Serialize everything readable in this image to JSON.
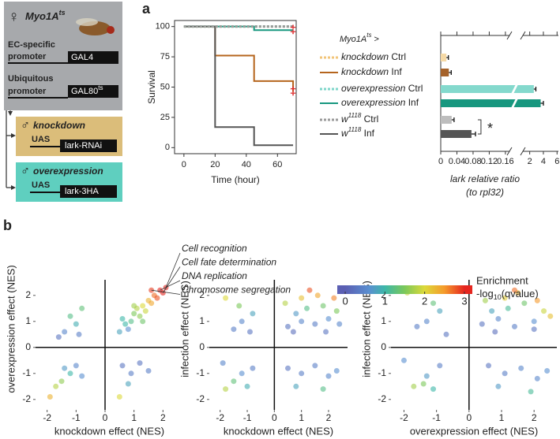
{
  "panels": [
    "a",
    "b"
  ],
  "diagram": {
    "female": {
      "symbol": "♀",
      "name": "Myo1A",
      "sup": "ts"
    },
    "drivers": [
      {
        "promoter": [
          "EC-specific",
          "promoter"
        ],
        "gene": "GAL4"
      },
      {
        "promoter": [
          "Ubiquitous",
          "promoter"
        ],
        "gene": "GAL80",
        "sup": "ts"
      }
    ],
    "males": [
      {
        "symbol": "♂",
        "name": "knockdown",
        "uas": "UAS",
        "construct": "lark-RNAi"
      },
      {
        "symbol": "♂",
        "name": "overexpression",
        "uas": "UAS",
        "construct": "lark-3HA"
      }
    ]
  },
  "colorbar": {
    "title": "Enrichment",
    "label": {
      "text": "-log",
      "sub": "10",
      "suffix": "(qvalue)"
    },
    "clim": [
      -0.2,
      3.2
    ],
    "ticks": [
      0,
      1,
      2,
      3
    ],
    "colormap": [
      {
        "value": 0,
        "color": "#5b5fb3"
      },
      {
        "value": 0.6,
        "color": "#5a8fd0"
      },
      {
        "value": 1,
        "color": "#3db7a8"
      },
      {
        "value": 1.5,
        "color": "#7cc85a"
      },
      {
        "value": 2,
        "color": "#dcd93a"
      },
      {
        "value": 2.5,
        "color": "#f59a2c"
      },
      {
        "value": 3,
        "color": "#e5261f"
      }
    ]
  },
  "chart_data": [
    {
      "type": "line",
      "xlabel": "Time (hour)",
      "ylabel": "Survival",
      "xlim": [
        -6,
        72
      ],
      "ylim": [
        -5,
        105
      ],
      "xticks": [
        0,
        20,
        40,
        60
      ],
      "yticks": [
        0,
        25,
        50,
        75,
        100
      ],
      "legend_title": {
        "text": "Myo1A",
        "sup": "ts",
        "suffix": " >"
      },
      "series": [
        {
          "name": "knockdown Ctrl",
          "color": "#f2c57a",
          "dashed": true,
          "x": [
            0,
            70
          ],
          "values": [
            100,
            100
          ]
        },
        {
          "name": "knockdown Inf",
          "color": "#b5651d",
          "dashed": false,
          "x": [
            0,
            20,
            20,
            45,
            45,
            70,
            70
          ],
          "values": [
            100,
            100,
            76,
            76,
            55,
            55,
            46
          ]
        },
        {
          "name": "overexpression Ctrl",
          "color": "#7fd6ca",
          "dashed": true,
          "x": [
            0,
            70
          ],
          "values": [
            100,
            100
          ]
        },
        {
          "name": "overexpression Inf",
          "color": "#17977f",
          "dashed": false,
          "x": [
            0,
            45,
            45,
            70
          ],
          "values": [
            100,
            100,
            97,
            97
          ]
        },
        {
          "name": "w1118 Ctrl",
          "color": "#9a9a9a",
          "dashed": true,
          "x": [
            0,
            70
          ],
          "values": [
            100,
            100
          ]
        },
        {
          "name": "w1118 Inf",
          "color": "#555555",
          "dashed": false,
          "x": [
            0,
            20,
            20,
            45,
            45,
            70
          ],
          "values": [
            100,
            100,
            17,
            17,
            2,
            2
          ]
        }
      ],
      "annotations": [
        {
          "text": "‡",
          "x": 70,
          "y": 97
        },
        {
          "text": "‡",
          "x": 70,
          "y": 46
        }
      ]
    },
    {
      "type": "hbar",
      "xlabel": "lark relative ratio",
      "xlabel2": "(to rpl32)",
      "xlim": [
        0,
        6.2
      ],
      "xbreak": [
        0.17,
        1
      ],
      "xticks": [
        0,
        0.04,
        0.08,
        0.12,
        0.16,
        2,
        4,
        6
      ],
      "categories": [
        null,
        null,
        null,
        null,
        null,
        null
      ],
      "values": [
        0.014,
        0.02,
        2.6,
        3.6,
        0.027,
        0.076
      ],
      "errors": [
        0.005,
        0.006,
        0.3,
        0.4,
        0.006,
        0.01
      ],
      "colors": [
        "#f5d9a6",
        "#a5622a",
        "#84d9cd",
        "#17977f",
        "#bdbdbd",
        "#555555"
      ],
      "annotation": "*"
    },
    {
      "type": "scatter",
      "xlabel": "knockdown effect (NES)",
      "ylabel": "overexpression effect (NES)",
      "xlim": [
        -2.4,
        2.7
      ],
      "ylim": [
        -2.4,
        2.6
      ],
      "xticks": [
        -2,
        -1,
        0,
        1,
        2
      ],
      "yticks": [
        -2,
        -1,
        0,
        1,
        2
      ],
      "annotations": [
        "Cell recognition",
        "Cell fate determination",
        "DNA replication",
        "Chromosome segregation"
      ],
      "x": [
        0.5,
        0.7,
        0.9,
        1.0,
        1.2,
        1.1,
        1.3,
        1.4,
        1.5,
        1.6,
        1.7,
        1.8,
        1.9,
        2.0,
        1.6,
        0.8,
        1.3,
        0.6,
        1.0,
        2.1,
        -1.2,
        -1.0,
        -0.8,
        -1.4,
        -0.9,
        -1.6,
        -1.5,
        -1.2,
        -1.0,
        -1.7,
        -0.8,
        -1.4,
        -1.9,
        0.6,
        0.9,
        1.2,
        0.8,
        1.5,
        0.5
      ],
      "values": [
        0.6,
        0.9,
        1.0,
        1.3,
        1.2,
        1.5,
        1.6,
        1.4,
        1.8,
        1.7,
        2.0,
        1.9,
        2.2,
        2.1,
        2.2,
        0.7,
        1.0,
        1.1,
        1.6,
        2.3,
        1.2,
        0.9,
        1.5,
        0.6,
        0.5,
        0.4,
        -1.3,
        -1.0,
        -0.7,
        -1.5,
        -1.1,
        -0.8,
        -1.9,
        -0.7,
        -1.0,
        -0.6,
        -1.4,
        -0.9,
        -1.9
      ],
      "color_values": [
        0.8,
        1.0,
        1.2,
        1.5,
        1.6,
        1.8,
        2.0,
        1.9,
        2.3,
        2.4,
        2.7,
        2.8,
        3.0,
        3.0,
        2.9,
        0.6,
        1.4,
        1.0,
        1.7,
        3.0,
        1.2,
        0.9,
        1.3,
        0.5,
        0.4,
        0.3,
        1.6,
        1.0,
        0.5,
        1.8,
        0.6,
        0.7,
        2.3,
        0.3,
        0.4,
        0.3,
        0.8,
        0.4,
        2.0
      ]
    },
    {
      "type": "scatter",
      "xlabel": "knockdown effect (NES)",
      "ylabel": "infection effect (NES)",
      "xlim": [
        -2.4,
        2.7
      ],
      "ylim": [
        -2.4,
        2.6
      ],
      "xticks": [
        -2,
        -1,
        0,
        1,
        2
      ],
      "yticks": [
        -2,
        -1,
        0,
        1,
        2
      ],
      "x": [
        0.5,
        1.0,
        1.5,
        2.0,
        0.8,
        1.2,
        1.8,
        2.3,
        0.4,
        1.0,
        1.6,
        2.2,
        1.3,
        0.7,
        1.9,
        2.4,
        -1.8,
        -1.2,
        -0.8,
        -1.5,
        -0.9,
        -1.3,
        -1.8,
        -1.2,
        -0.8,
        -1.5,
        -1.0,
        -1.9,
        0.5,
        1.0,
        1.5,
        2.0,
        0.8,
        1.8,
        2.3
      ],
      "values": [
        0.8,
        1.0,
        0.9,
        1.1,
        1.3,
        1.5,
        1.6,
        1.4,
        1.7,
        1.9,
        2.0,
        1.9,
        2.2,
        0.6,
        0.6,
        0.9,
        1.9,
        1.0,
        1.3,
        0.7,
        0.6,
        1.6,
        -1.6,
        -1.0,
        -0.8,
        -1.3,
        -1.5,
        -0.6,
        -0.8,
        -1.0,
        -0.7,
        -1.1,
        -1.5,
        -1.6,
        -0.9
      ],
      "color_values": [
        0.3,
        0.5,
        0.4,
        0.6,
        0.7,
        1.2,
        1.4,
        1.5,
        1.8,
        2.2,
        2.4,
        2.6,
        2.8,
        0.2,
        0.3,
        0.5,
        2.0,
        0.5,
        0.8,
        0.4,
        0.3,
        1.5,
        1.8,
        0.6,
        0.4,
        1.3,
        0.9,
        0.5,
        0.3,
        0.4,
        0.4,
        0.5,
        0.8,
        1.2,
        0.6
      ]
    },
    {
      "type": "scatter",
      "xlabel": "overexpression effect (NES)",
      "ylabel": "infection effect (NES)",
      "xlim": [
        -2.4,
        2.7
      ],
      "ylim": [
        -2.4,
        2.6
      ],
      "xticks": [
        -2,
        -1,
        0,
        1,
        2
      ],
      "yticks": [
        -2,
        -1,
        0,
        1,
        2
      ],
      "x": [
        0.4,
        0.9,
        1.4,
        2.0,
        0.7,
        1.2,
        1.7,
        2.3,
        0.5,
        1.1,
        1.5,
        2.1,
        1.4,
        0.8,
        2.0,
        2.5,
        -1.9,
        -1.3,
        -0.9,
        -1.6,
        -0.7,
        -1.1,
        -1.7,
        -1.3,
        -0.9,
        -1.4,
        -1.1,
        -2.0,
        0.6,
        1.1,
        1.6,
        2.1,
        0.9,
        1.9,
        2.4
      ],
      "values": [
        0.9,
        1.1,
        0.8,
        1.0,
        1.4,
        1.5,
        1.7,
        1.4,
        1.8,
        1.9,
        2.1,
        1.8,
        2.2,
        0.6,
        0.7,
        1.2,
        2.1,
        1.0,
        1.4,
        0.8,
        0.5,
        1.7,
        -1.5,
        -1.1,
        -0.7,
        -1.4,
        -1.6,
        -0.5,
        -0.7,
        -1.0,
        -0.8,
        -1.2,
        -1.5,
        -1.7,
        -0.9
      ],
      "color_values": [
        0.3,
        0.5,
        0.4,
        0.6,
        0.8,
        1.1,
        1.4,
        1.9,
        1.7,
        2.1,
        2.3,
        2.5,
        2.7,
        0.2,
        0.3,
        2.2,
        1.9,
        0.5,
        0.8,
        0.4,
        0.3,
        1.3,
        1.7,
        0.7,
        0.4,
        1.5,
        1.0,
        0.6,
        0.3,
        0.4,
        0.5,
        0.5,
        0.7,
        1.1,
        0.6
      ]
    }
  ]
}
